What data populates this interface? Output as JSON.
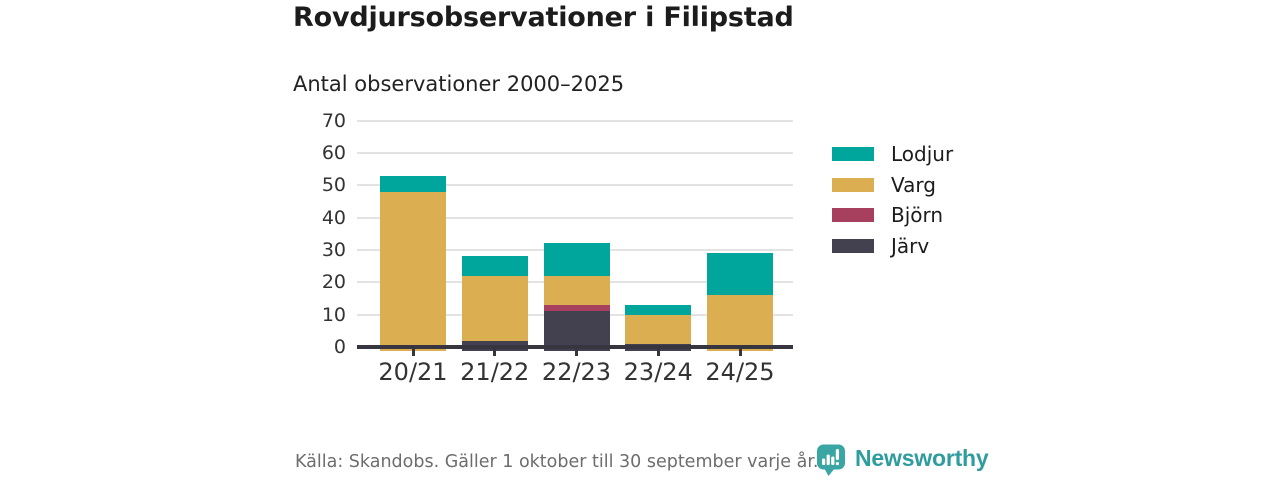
{
  "header": {
    "title": "Rovdjursobservationer i Filipstad",
    "subtitle": "Antal observationer 2000–2025"
  },
  "footer": {
    "source": "Källa: Skandobs. Gäller 1 oktober till 30 september varje år.",
    "brand": "Newsworthy"
  },
  "palette": {
    "axis": "#37353f",
    "grid": "#e3e3e3",
    "tick_text": "#333333",
    "brand_text": "#2f9c9e",
    "brand_icon": "#3aa5a2"
  },
  "chart_data": {
    "type": "bar",
    "stacked": true,
    "title": "Rovdjursobservationer i Filipstad",
    "subtitle": "Antal observationer 2000–2025",
    "categories": [
      "20/21",
      "21/22",
      "22/23",
      "23/24",
      "24/25"
    ],
    "series": [
      {
        "name": "Järv",
        "color": "#434050",
        "values": [
          0,
          2,
          11,
          1,
          0
        ]
      },
      {
        "name": "Björn",
        "color": "#a73f5e",
        "values": [
          0,
          0,
          2,
          0,
          0
        ]
      },
      {
        "name": "Varg",
        "color": "#dcae52",
        "values": [
          48,
          20,
          9,
          9,
          16
        ]
      },
      {
        "name": "Lodjur",
        "color": "#00a69c",
        "values": [
          5,
          6,
          10,
          3,
          13
        ]
      }
    ],
    "stack_order": "bottom-to-top",
    "totals": [
      53,
      28,
      32,
      13,
      29
    ],
    "ylim": [
      0,
      70
    ],
    "ytick_step": 10,
    "grid": "horizontal",
    "xlabel": "",
    "ylabel": "",
    "legend": {
      "position": "right",
      "order": [
        "Lodjur",
        "Varg",
        "Björn",
        "Järv"
      ]
    }
  }
}
